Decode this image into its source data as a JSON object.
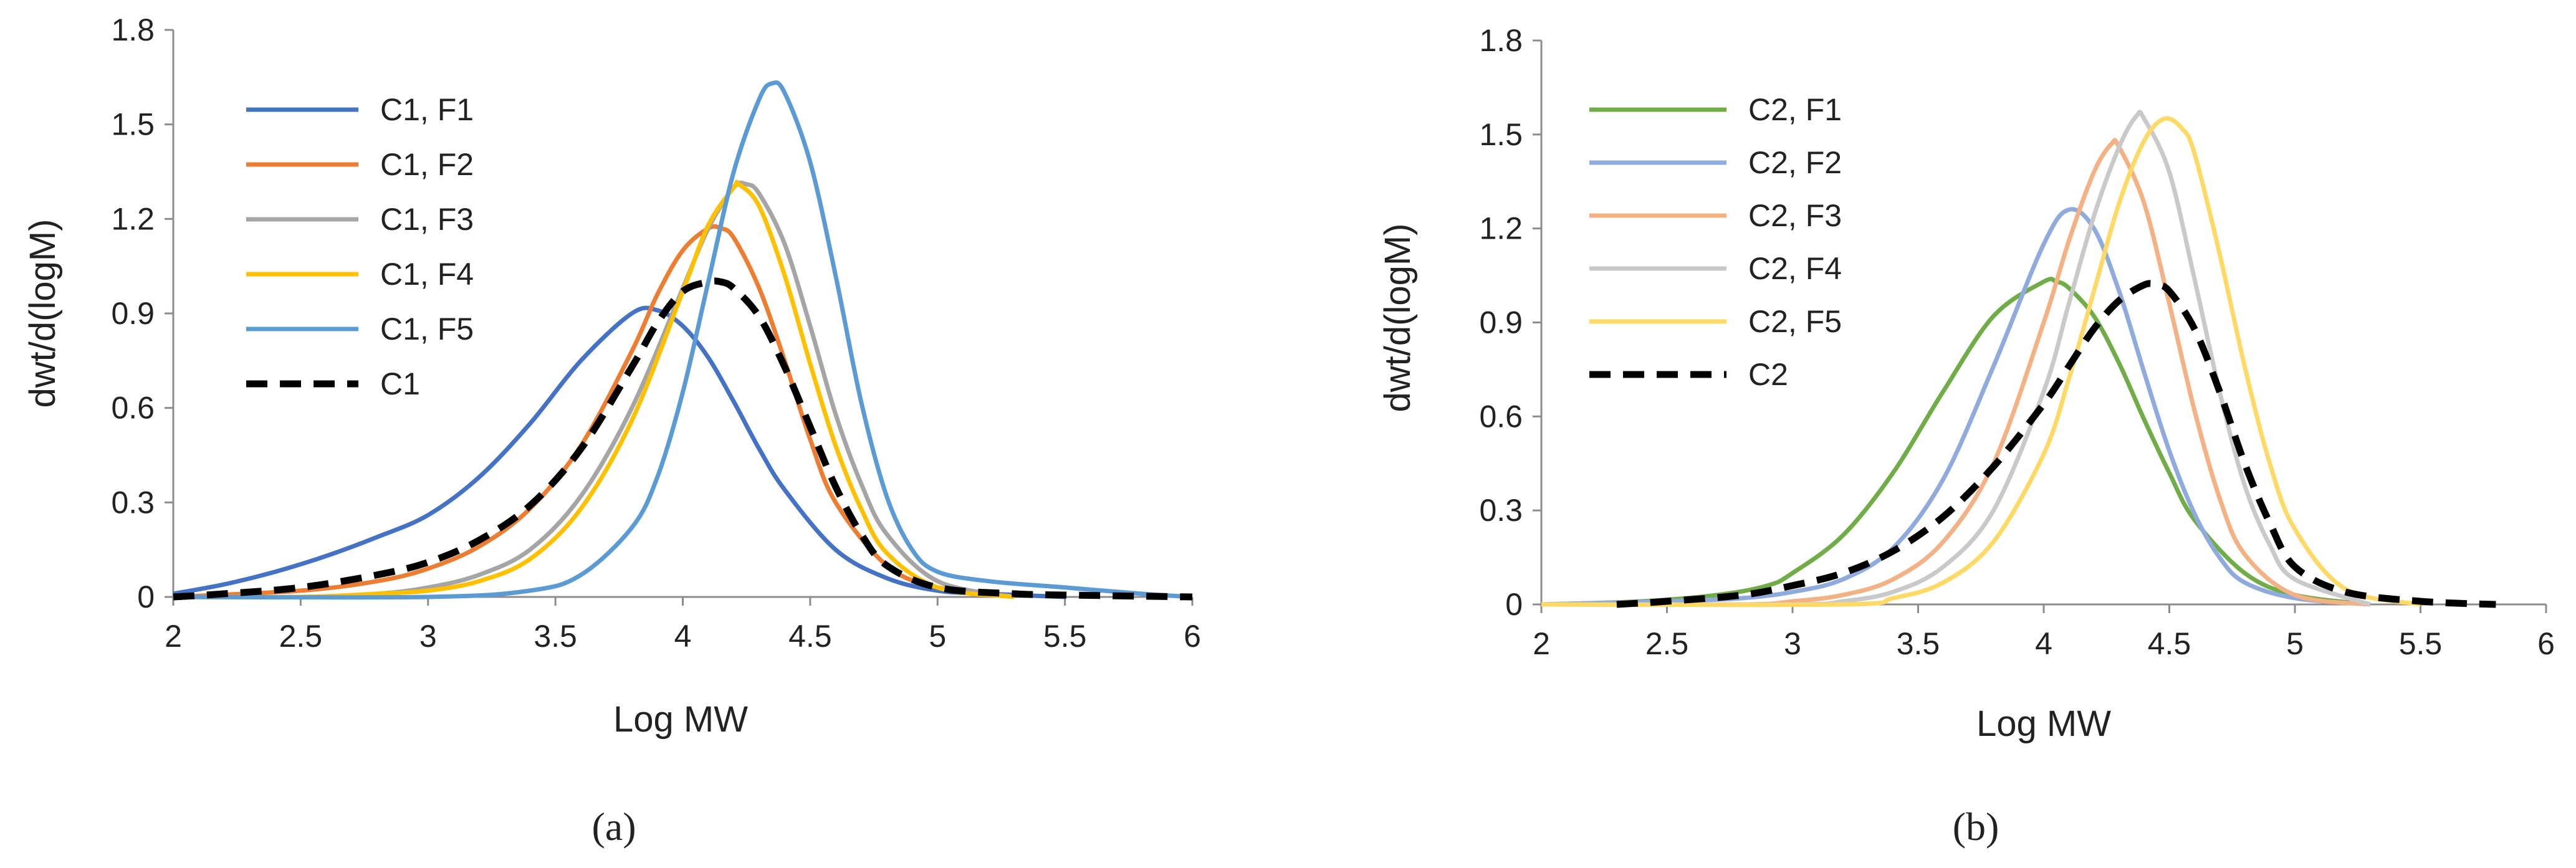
{
  "figure": {
    "panels": [
      "(a)",
      "(b)"
    ]
  },
  "chart_data": [
    {
      "type": "line",
      "panel_label": "(a)",
      "title": "",
      "xlabel": "Log MW",
      "ylabel": "dwt/d(logM)",
      "xlim": [
        2,
        6
      ],
      "ylim": [
        0,
        1.8
      ],
      "xticks": [
        "2",
        "2.5",
        "3",
        "3.5",
        "4",
        "4.5",
        "5",
        "5.5",
        "6"
      ],
      "yticks": [
        "0",
        "0.3",
        "0.6",
        "0.9",
        "1.2",
        "1.5",
        "1.8"
      ],
      "grid": false,
      "legend_position": "top-left",
      "series": [
        {
          "name": "C1, F1",
          "color": "#4472C4",
          "dash": "solid",
          "x": [
            2.0,
            2.2,
            2.4,
            2.6,
            2.8,
            3.0,
            3.2,
            3.4,
            3.6,
            3.8,
            3.9,
            4.0,
            4.1,
            4.2,
            4.3,
            4.4,
            4.6,
            4.8,
            5.0,
            5.2,
            5.5
          ],
          "y": [
            0.01,
            0.04,
            0.08,
            0.13,
            0.19,
            0.26,
            0.38,
            0.55,
            0.75,
            0.9,
            0.91,
            0.86,
            0.76,
            0.62,
            0.47,
            0.34,
            0.15,
            0.06,
            0.02,
            0.01,
            0.0
          ]
        },
        {
          "name": "C1, F2",
          "color": "#ED7D31",
          "dash": "solid",
          "x": [
            2.0,
            2.5,
            2.8,
            3.0,
            3.2,
            3.4,
            3.6,
            3.8,
            3.9,
            4.0,
            4.1,
            4.15,
            4.2,
            4.3,
            4.4,
            4.5,
            4.6,
            4.8,
            5.0,
            5.3
          ],
          "y": [
            0.0,
            0.02,
            0.05,
            0.09,
            0.16,
            0.28,
            0.48,
            0.78,
            0.96,
            1.1,
            1.17,
            1.17,
            1.14,
            0.98,
            0.75,
            0.5,
            0.3,
            0.1,
            0.03,
            0.0
          ]
        },
        {
          "name": "C1, F3",
          "color": "#A5A5A5",
          "dash": "solid",
          "x": [
            2.0,
            2.5,
            2.8,
            3.0,
            3.2,
            3.4,
            3.6,
            3.8,
            4.0,
            4.1,
            4.2,
            4.25,
            4.3,
            4.4,
            4.5,
            4.6,
            4.7,
            4.8,
            5.0,
            5.3
          ],
          "y": [
            0.0,
            0.0,
            0.01,
            0.03,
            0.07,
            0.15,
            0.32,
            0.6,
            0.98,
            1.17,
            1.3,
            1.31,
            1.28,
            1.12,
            0.86,
            0.58,
            0.36,
            0.2,
            0.05,
            0.0
          ]
        },
        {
          "name": "C1, F4",
          "color": "#FFC000",
          "dash": "solid",
          "x": [
            2.0,
            2.5,
            2.8,
            3.0,
            3.2,
            3.4,
            3.6,
            3.8,
            4.0,
            4.1,
            4.2,
            4.22,
            4.3,
            4.4,
            4.5,
            4.6,
            4.7,
            4.8,
            5.0,
            5.3
          ],
          "y": [
            0.0,
            0.0,
            0.01,
            0.02,
            0.05,
            0.12,
            0.28,
            0.56,
            0.97,
            1.18,
            1.3,
            1.31,
            1.24,
            1.02,
            0.74,
            0.48,
            0.28,
            0.14,
            0.03,
            0.0
          ]
        },
        {
          "name": "C1, F5",
          "color": "#5B9BD5",
          "dash": "solid",
          "x": [
            2.0,
            3.0,
            3.4,
            3.6,
            3.8,
            3.9,
            4.0,
            4.1,
            4.2,
            4.3,
            4.35,
            4.4,
            4.5,
            4.6,
            4.7,
            4.8,
            4.9,
            5.0,
            5.2,
            5.5,
            5.8,
            6.0
          ],
          "y": [
            0.0,
            0.0,
            0.02,
            0.07,
            0.22,
            0.38,
            0.65,
            1.0,
            1.35,
            1.58,
            1.63,
            1.6,
            1.38,
            1.02,
            0.62,
            0.32,
            0.15,
            0.08,
            0.05,
            0.03,
            0.01,
            0.0
          ]
        },
        {
          "name": "C1",
          "color": "#000000",
          "dash": "dashed",
          "x": [
            2.0,
            2.2,
            2.5,
            2.8,
            3.0,
            3.2,
            3.4,
            3.6,
            3.8,
            3.9,
            4.0,
            4.1,
            4.15,
            4.2,
            4.3,
            4.4,
            4.5,
            4.6,
            4.7,
            4.8,
            5.0,
            5.3,
            5.6,
            6.0
          ],
          "y": [
            0.0,
            0.01,
            0.03,
            0.07,
            0.11,
            0.18,
            0.29,
            0.47,
            0.73,
            0.87,
            0.97,
            1.0,
            1.0,
            0.98,
            0.89,
            0.73,
            0.54,
            0.35,
            0.2,
            0.1,
            0.03,
            0.01,
            0.005,
            0.0
          ]
        }
      ]
    },
    {
      "type": "line",
      "panel_label": "(b)",
      "title": "",
      "xlabel": "Log MW",
      "ylabel": "dwt/d(logM)",
      "xlim": [
        2,
        6
      ],
      "ylim": [
        0,
        1.8
      ],
      "xticks": [
        "2",
        "2.5",
        "3",
        "3.5",
        "4",
        "4.5",
        "5",
        "5.5",
        "6"
      ],
      "yticks": [
        "0",
        "0.3",
        "0.6",
        "0.9",
        "1.2",
        "1.5",
        "1.8"
      ],
      "grid": false,
      "legend_position": "top-left",
      "series": [
        {
          "name": "C2, F1",
          "color": "#70AD47",
          "dash": "solid",
          "x": [
            2.0,
            2.4,
            2.7,
            2.9,
            3.0,
            3.2,
            3.4,
            3.6,
            3.8,
            4.0,
            4.05,
            4.1,
            4.2,
            4.3,
            4.4,
            4.5,
            4.6,
            4.8,
            5.0,
            5.3
          ],
          "y": [
            0.0,
            0.01,
            0.03,
            0.06,
            0.1,
            0.22,
            0.42,
            0.68,
            0.92,
            1.03,
            1.03,
            1.01,
            0.92,
            0.77,
            0.59,
            0.42,
            0.27,
            0.1,
            0.03,
            0.0
          ]
        },
        {
          "name": "C2, F2",
          "color": "#8FAADC",
          "dash": "solid",
          "x": [
            2.0,
            2.5,
            2.8,
            3.0,
            3.2,
            3.4,
            3.6,
            3.8,
            4.0,
            4.1,
            4.2,
            4.3,
            4.4,
            4.5,
            4.6,
            4.7,
            4.8,
            5.0,
            5.3
          ],
          "y": [
            0.0,
            0.01,
            0.02,
            0.04,
            0.08,
            0.18,
            0.4,
            0.76,
            1.15,
            1.26,
            1.2,
            1.0,
            0.74,
            0.49,
            0.29,
            0.15,
            0.07,
            0.02,
            0.0
          ]
        },
        {
          "name": "C2, F3",
          "color": "#F4B183",
          "dash": "solid",
          "x": [
            2.0,
            2.8,
            3.0,
            3.2,
            3.4,
            3.6,
            3.8,
            4.0,
            4.1,
            4.2,
            4.27,
            4.3,
            4.4,
            4.5,
            4.6,
            4.7,
            4.8,
            5.0,
            5.3
          ],
          "y": [
            0.0,
            0.0,
            0.01,
            0.03,
            0.08,
            0.2,
            0.45,
            0.9,
            1.16,
            1.38,
            1.47,
            1.46,
            1.28,
            0.96,
            0.62,
            0.34,
            0.16,
            0.03,
            0.0
          ]
        },
        {
          "name": "C2, F4",
          "color": "#C9C9C9",
          "dash": "solid",
          "x": [
            2.0,
            3.0,
            3.2,
            3.4,
            3.6,
            3.8,
            4.0,
            4.1,
            4.2,
            4.3,
            4.37,
            4.4,
            4.5,
            4.6,
            4.7,
            4.8,
            4.9,
            5.0,
            5.3
          ],
          "y": [
            0.0,
            0.0,
            0.01,
            0.04,
            0.12,
            0.3,
            0.68,
            0.96,
            1.24,
            1.46,
            1.56,
            1.55,
            1.38,
            1.04,
            0.68,
            0.38,
            0.19,
            0.08,
            0.0
          ]
        },
        {
          "name": "C2, F5",
          "color": "#FFD966",
          "dash": "solid",
          "x": [
            2.0,
            3.2,
            3.4,
            3.6,
            3.8,
            4.0,
            4.1,
            4.2,
            4.3,
            4.4,
            4.48,
            4.55,
            4.6,
            4.7,
            4.8,
            4.9,
            5.0,
            5.2,
            5.5
          ],
          "y": [
            0.0,
            0.0,
            0.02,
            0.07,
            0.2,
            0.48,
            0.72,
            1.0,
            1.28,
            1.48,
            1.55,
            1.52,
            1.44,
            1.12,
            0.76,
            0.45,
            0.24,
            0.05,
            0.0
          ]
        },
        {
          "name": "C2",
          "color": "#000000",
          "dash": "dashed",
          "x": [
            2.3,
            2.5,
            2.8,
            3.0,
            3.2,
            3.4,
            3.6,
            3.8,
            4.0,
            4.1,
            4.2,
            4.3,
            4.4,
            4.45,
            4.5,
            4.6,
            4.7,
            4.8,
            4.9,
            5.0,
            5.2,
            5.5,
            5.8
          ],
          "y": [
            0.0,
            0.01,
            0.03,
            0.06,
            0.1,
            0.17,
            0.28,
            0.44,
            0.64,
            0.76,
            0.88,
            0.97,
            1.02,
            1.02,
            1.0,
            0.88,
            0.68,
            0.45,
            0.26,
            0.12,
            0.04,
            0.01,
            0.0
          ]
        }
      ]
    }
  ]
}
